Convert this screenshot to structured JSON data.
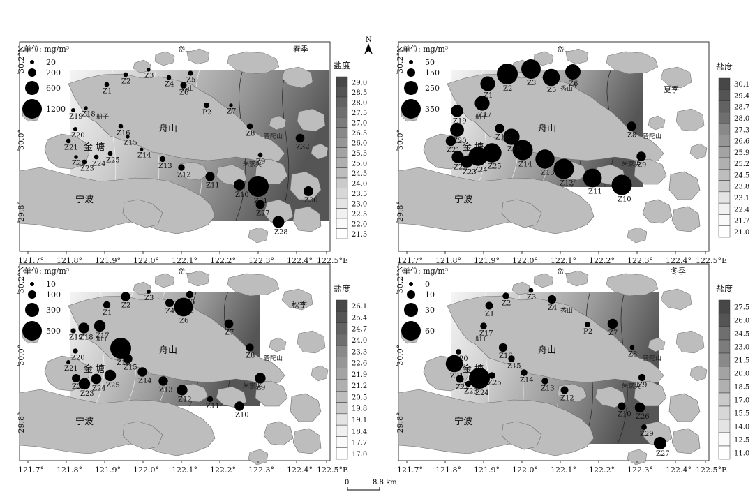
{
  "colorbar_title": "盐度",
  "legend_unit": "单位: mg/m³",
  "north_arrow": "N",
  "scale_bar": {
    "zero": "0",
    "distance": "8.8 km"
  },
  "place_names": {
    "ningbo": "宁波",
    "zhoushan": "舟山",
    "jintang": "金 塘",
    "daishan": "岱山",
    "xiushan": "秀山",
    "cezi": "册子",
    "zhujiajian": "朱家尖",
    "putuo": "普陀山"
  },
  "x_ticks": [
    "121.7°",
    "121.8°",
    "121.9°",
    "122.0°",
    "122.1°",
    "122.2°",
    "122.3°",
    "122.4°",
    "122.5°E"
  ],
  "y_ticks": [
    "29.8°",
    "30.0°",
    "30.2°N"
  ],
  "panels": [
    {
      "season": "春季",
      "legend_values": [
        "20",
        "200",
        "600",
        "1200"
      ],
      "colorbar": [
        "29.0",
        "28.5",
        "28.0",
        "27.5",
        "27.0",
        "26.5",
        "26.0",
        "25.5",
        "25.0",
        "24.5",
        "24.0",
        "23.5",
        "23.0",
        "22.5",
        "22.0",
        "21.5"
      ],
      "stations": [
        {
          "label": "Z1",
          "value": 60
        },
        {
          "label": "Z2",
          "value": 60
        },
        {
          "label": "Z3",
          "value": 40
        },
        {
          "label": "Z4",
          "value": 60
        },
        {
          "label": "Z5",
          "value": 70
        },
        {
          "label": "Z6",
          "value": 110
        },
        {
          "label": "Z7",
          "value": 40
        },
        {
          "label": "P2",
          "value": 90
        },
        {
          "label": "Z8",
          "value": 100
        },
        {
          "label": "Z16",
          "value": 60
        },
        {
          "label": "Z15",
          "value": 40
        },
        {
          "label": "Z18",
          "value": 40
        },
        {
          "label": "Z19",
          "value": 50
        },
        {
          "label": "Z20",
          "value": 50
        },
        {
          "label": "Z21",
          "value": 60
        },
        {
          "label": "Z22",
          "value": 40
        },
        {
          "label": "Z23",
          "value": 60
        },
        {
          "label": "Z24",
          "value": 60
        },
        {
          "label": "Z25",
          "value": 60
        },
        {
          "label": "Z14",
          "value": 30
        },
        {
          "label": "Z13",
          "value": 90
        },
        {
          "label": "Z12",
          "value": 120
        },
        {
          "label": "Z11",
          "value": 230
        },
        {
          "label": "Z10",
          "value": 330
        },
        {
          "label": "Z9",
          "value": 60
        },
        {
          "label": "Z31",
          "value": 1200
        },
        {
          "label": "Z27",
          "value": 220
        },
        {
          "label": "Z28",
          "value": 380
        },
        {
          "label": "Z30",
          "value": 260
        },
        {
          "label": "Z32",
          "value": 210
        }
      ]
    },
    {
      "season": "夏季",
      "legend_values": [
        "50",
        "150",
        "250",
        "350"
      ],
      "colorbar": [
        "30.1",
        "29.4",
        "28.7",
        "28.0",
        "27.3",
        "26.6",
        "25.9",
        "25.2",
        "24.5",
        "23.8",
        "23.1",
        "22.4",
        "21.7",
        "21.0"
      ],
      "stations": [
        {
          "label": "Z1",
          "value": 150
        },
        {
          "label": "Z2",
          "value": 300
        },
        {
          "label": "Z3",
          "value": 260
        },
        {
          "label": "Z5",
          "value": 200
        },
        {
          "label": "Z6",
          "value": 160
        },
        {
          "label": "Z8",
          "value": 60
        },
        {
          "label": "Z9",
          "value": 60
        },
        {
          "label": "Z10",
          "value": 280
        },
        {
          "label": "Z11",
          "value": 240
        },
        {
          "label": "Z12",
          "value": 280
        },
        {
          "label": "Z13",
          "value": 250
        },
        {
          "label": "Z14",
          "value": 280
        },
        {
          "label": "Z15",
          "value": 180
        },
        {
          "label": "Z16",
          "value": 60
        },
        {
          "label": "Z17",
          "value": 150
        },
        {
          "label": "Z19",
          "value": 100
        },
        {
          "label": "Z20",
          "value": 130
        },
        {
          "label": "Z21",
          "value": 70
        },
        {
          "label": "Z22",
          "value": 100
        },
        {
          "label": "Z23",
          "value": 100
        },
        {
          "label": "Z24",
          "value": 250
        },
        {
          "label": "Z25",
          "value": 250
        }
      ]
    },
    {
      "season": "秋季",
      "legend_values": [
        "10",
        "100",
        "300",
        "500"
      ],
      "colorbar": [
        "26.1",
        "25.4",
        "24.7",
        "24.0",
        "23.3",
        "22.6",
        "21.9",
        "21.2",
        "20.5",
        "19.8",
        "19.1",
        "18.4",
        "17.7",
        "17.0"
      ],
      "stations": [
        {
          "label": "Z1",
          "value": 60
        },
        {
          "label": "Z2",
          "value": 100
        },
        {
          "label": "Z3",
          "value": 20
        },
        {
          "label": "Z4",
          "value": 80
        },
        {
          "label": "Z5",
          "value": 60
        },
        {
          "label": "Z6",
          "value": 400
        },
        {
          "label": "Z7",
          "value": 90
        },
        {
          "label": "Z8",
          "value": 70
        },
        {
          "label": "Z9",
          "value": 130
        },
        {
          "label": "Z10",
          "value": 100
        },
        {
          "label": "Z11",
          "value": 40
        },
        {
          "label": "Z12",
          "value": 130
        },
        {
          "label": "Z13",
          "value": 100
        },
        {
          "label": "Z14",
          "value": 100
        },
        {
          "label": "Z15",
          "value": 100
        },
        {
          "label": "Z16",
          "value": 500
        },
        {
          "label": "Z17",
          "value": 150
        },
        {
          "label": "Z18",
          "value": 130
        },
        {
          "label": "Z19",
          "value": 30
        },
        {
          "label": "Z20",
          "value": 30
        },
        {
          "label": "Z21",
          "value": 20
        },
        {
          "label": "Z22",
          "value": 80
        },
        {
          "label": "Z23",
          "value": 150
        },
        {
          "label": "Z24",
          "value": 120
        },
        {
          "label": "Z25",
          "value": 150
        }
      ]
    },
    {
      "season": "冬季",
      "legend_values": [
        "0",
        "10",
        "30",
        "60"
      ],
      "colorbar": [
        "27.5",
        "26.0",
        "24.5",
        "23.0",
        "21.5",
        "20.0",
        "18.5",
        "17.0",
        "15.5",
        "14.0",
        "12.5",
        "11.0"
      ],
      "stations": [
        {
          "label": "Z1",
          "value": 8
        },
        {
          "label": "Z2",
          "value": 6
        },
        {
          "label": "Z3",
          "value": 3
        },
        {
          "label": "Z4",
          "value": 10
        },
        {
          "label": "Z7",
          "value": 14
        },
        {
          "label": "P2",
          "value": 4
        },
        {
          "label": "Z8",
          "value": 3
        },
        {
          "label": "Z9",
          "value": 7
        },
        {
          "label": "Z10",
          "value": 8
        },
        {
          "label": "Z12",
          "value": 8
        },
        {
          "label": "Z13",
          "value": 6
        },
        {
          "label": "Z14",
          "value": 6
        },
        {
          "label": "Z15",
          "value": 6
        },
        {
          "label": "Z16",
          "value": 10
        },
        {
          "label": "Z17",
          "value": 6
        },
        {
          "label": "Z20",
          "value": 4
        },
        {
          "label": "Z21",
          "value": 40
        },
        {
          "label": "Z22",
          "value": 8
        },
        {
          "label": "Z23",
          "value": 5
        },
        {
          "label": "Z24",
          "value": 60
        },
        {
          "label": "Z25",
          "value": 6
        },
        {
          "label": "Z26",
          "value": 14
        },
        {
          "label": "Z27",
          "value": 22
        },
        {
          "label": "Z29",
          "value": 4
        }
      ]
    }
  ]
}
